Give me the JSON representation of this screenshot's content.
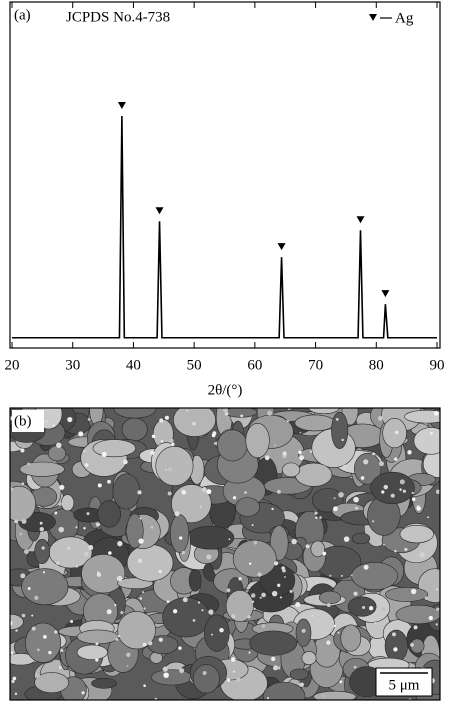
{
  "chart_data": {
    "type": "line",
    "panel_label": "(a)",
    "annotation": "JCPDS No.4-738",
    "xlabel": "2θ/(°)",
    "x": [
      20,
      37.7,
      38.1,
      38.5,
      43.9,
      44.3,
      44.7,
      64.0,
      64.4,
      64.8,
      77.0,
      77.4,
      77.8,
      81.2,
      81.5,
      81.9,
      90
    ],
    "series": [
      {
        "name": "Ag",
        "color": "#000000",
        "values": [
          1,
          1,
          100,
          1,
          1,
          53,
          1,
          1,
          37,
          1,
          1,
          49,
          1,
          1,
          16,
          1,
          1
        ]
      }
    ],
    "xlim": [
      20,
      90
    ],
    "xticks": [
      20,
      30,
      40,
      50,
      60,
      70,
      80,
      90
    ],
    "ylim": [
      0,
      150
    ]
  },
  "image": {
    "panel_label": "(b)",
    "scale_bar": "5 μm"
  }
}
